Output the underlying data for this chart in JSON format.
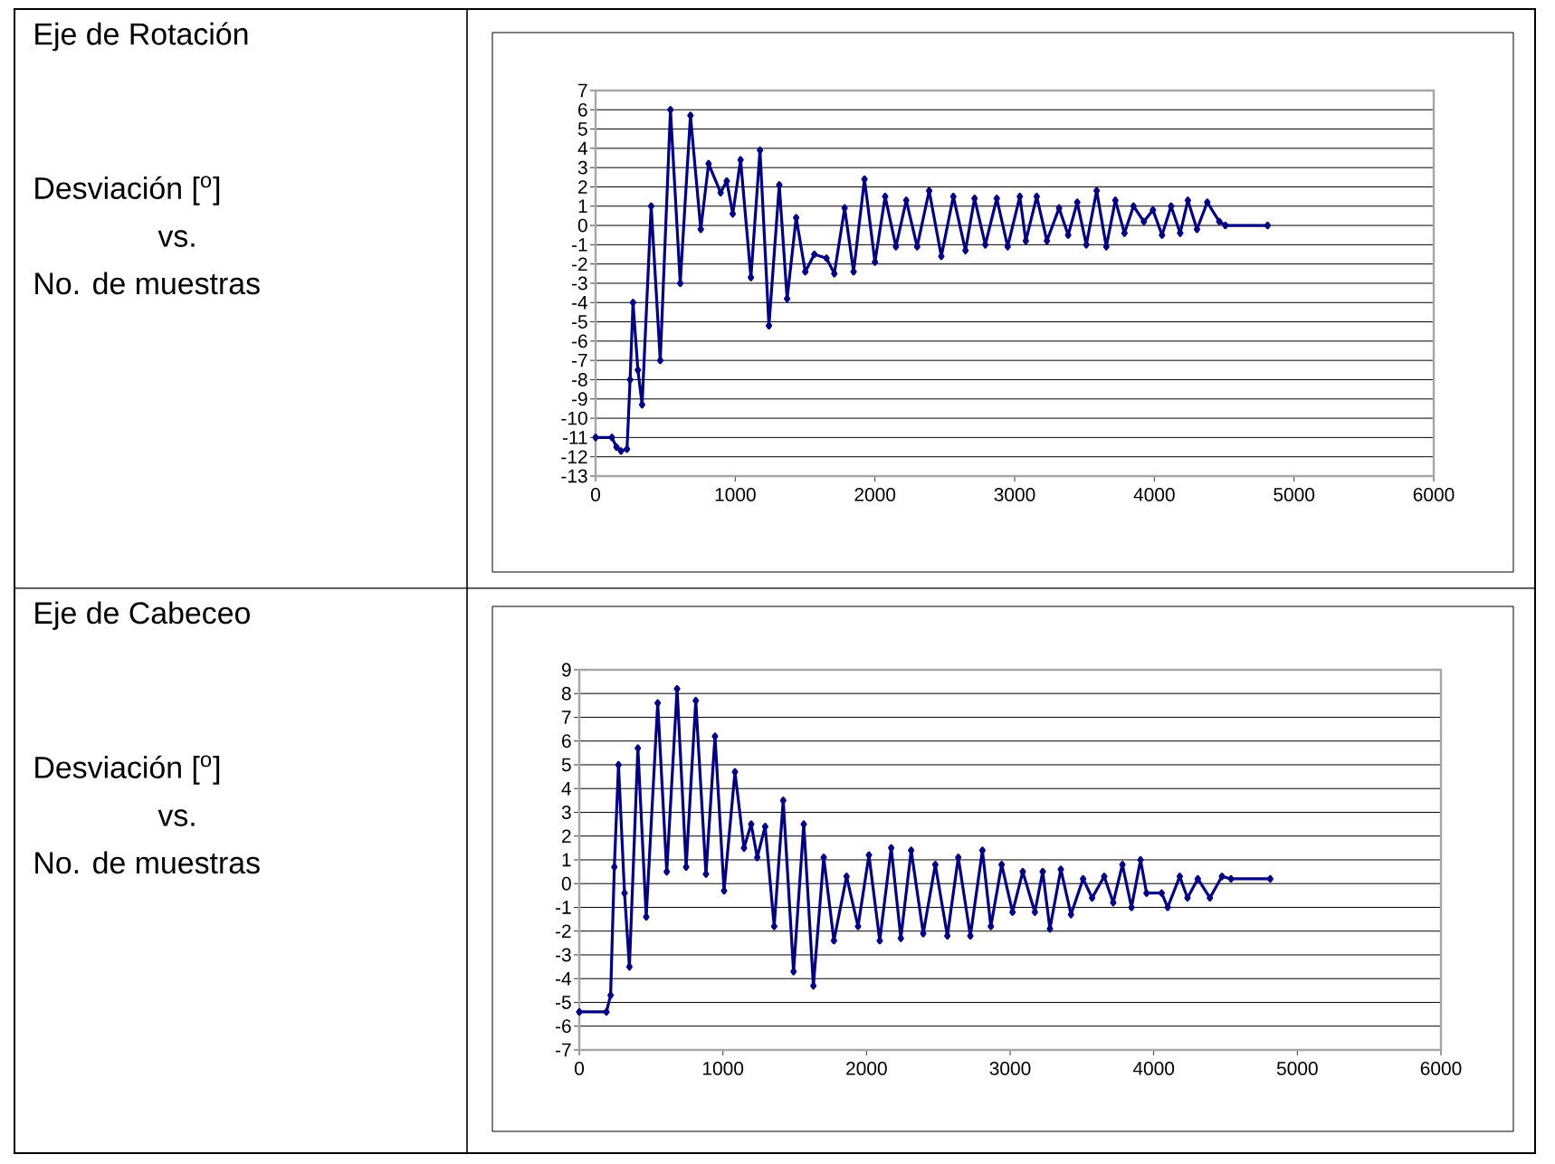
{
  "chart_data": [
    {
      "type": "line",
      "annotations": [
        "Eje de Rotación",
        "Desviación [$^{o}$]",
        "vs.",
        "No. de muestras"
      ],
      "xlim": [
        0,
        6000
      ],
      "xticks": [
        0,
        1000,
        2000,
        3000,
        4000,
        5000,
        6000
      ],
      "ylim": [
        -13,
        7
      ],
      "yticks": [
        -13,
        -12,
        -11,
        -10,
        -9,
        -8,
        -7,
        -6,
        -5,
        -4,
        -3,
        -2,
        -1,
        0,
        1,
        2,
        3,
        4,
        5,
        6,
        7
      ],
      "grid": "y",
      "marker": "diamond",
      "line_style": "solid",
      "series": [
        {
          "color": "#000080",
          "x": [
            0,
            117,
            150,
            182,
            225,
            247,
            268,
            303,
            333,
            398,
            463,
            536,
            606,
            679,
            753,
            809,
            895,
            939,
            982,
            1038,
            1112,
            1177,
            1241,
            1315,
            1371,
            1436,
            1501,
            1566,
            1653,
            1709,
            1783,
            1847,
            1925,
            2000,
            2073,
            2150,
            2224,
            2302,
            2388,
            2475,
            2561,
            2648,
            2713,
            2790,
            2872,
            2950,
            3037,
            3080,
            3158,
            3231,
            3318,
            3383,
            3448,
            3513,
            3587,
            3656,
            3721,
            3786,
            3851,
            3925,
            3990,
            4055,
            4120,
            4185,
            4240,
            4305,
            4379,
            4465,
            4508,
            4811
          ],
          "values": [
            -11,
            -11,
            -11.5,
            -11.7,
            -11.6,
            -8,
            -4,
            -7.5,
            -9.3,
            1,
            -7,
            6,
            -3,
            5.7,
            -0.2,
            3.2,
            1.7,
            2.3,
            0.6,
            3.4,
            -2.7,
            3.9,
            -5.2,
            2.1,
            -3.8,
            0.4,
            -2.4,
            -1.5,
            -1.7,
            -2.5,
            0.9,
            -2.4,
            2.4,
            -1.9,
            1.5,
            -1.1,
            1.3,
            -1.1,
            1.8,
            -1.6,
            1.5,
            -1.3,
            1.4,
            -1,
            1.4,
            -1.1,
            1.5,
            -0.8,
            1.5,
            -0.8,
            0.9,
            -0.5,
            1.2,
            -1,
            1.8,
            -1.1,
            1.3,
            -0.4,
            1,
            0.2,
            0.8,
            -0.5,
            1,
            -0.4,
            1.3,
            -0.2,
            1.2,
            0.2,
            0,
            0
          ]
        }
      ]
    },
    {
      "type": "line",
      "annotations": [
        "Eje de Cabeceo",
        "Desviación [$^{o}$]",
        "vs.",
        "No. de muestras"
      ],
      "xlim": [
        0,
        6000
      ],
      "xticks": [
        0,
        1000,
        2000,
        3000,
        4000,
        5000,
        6000
      ],
      "ylim": [
        -7,
        9
      ],
      "yticks": [
        -7,
        -6,
        -5,
        -4,
        -3,
        -2,
        -1,
        0,
        1,
        2,
        3,
        4,
        5,
        6,
        7,
        8,
        9
      ],
      "grid": "y",
      "marker": "diamond",
      "line_style": "solid",
      "series": [
        {
          "color": "#000080",
          "x": [
            0,
            189,
            218,
            244,
            273,
            315,
            349,
            408,
            466,
            546,
            609,
            681,
            744,
            811,
            882,
            945,
            1008,
            1084,
            1147,
            1197,
            1239,
            1294,
            1357,
            1420,
            1492,
            1563,
            1630,
            1702,
            1773,
            1861,
            1941,
            2017,
            2092,
            2172,
            2239,
            2311,
            2395,
            2479,
            2563,
            2639,
            2723,
            2807,
            2866,
            2941,
            3017,
            3088,
            3172,
            3227,
            3277,
            3353,
            3424,
            3508,
            3571,
            3655,
            3718,
            3782,
            3845,
            3908,
            3950,
            4055,
            4097,
            4181,
            4235,
            4307,
            4391,
            4475,
            4538,
            4811
          ],
          "values": [
            -5.4,
            -5.4,
            -4.7,
            0.7,
            5,
            -0.4,
            -3.5,
            5.7,
            -1.4,
            7.6,
            0.5,
            8.2,
            0.7,
            7.7,
            0.4,
            6.2,
            -0.3,
            4.7,
            1.5,
            2.5,
            1.1,
            2.4,
            -1.8,
            3.5,
            -3.7,
            2.5,
            -4.3,
            1.1,
            -2.4,
            0.3,
            -1.8,
            1.2,
            -2.4,
            1.5,
            -2.3,
            1.4,
            -2.1,
            0.8,
            -2.2,
            1.1,
            -2.2,
            1.4,
            -1.8,
            0.8,
            -1.2,
            0.5,
            -1.2,
            0.5,
            -1.9,
            0.6,
            -1.3,
            0.2,
            -0.6,
            0.3,
            -0.8,
            0.8,
            -1,
            1,
            -0.4,
            -0.4,
            -1,
            0.3,
            -0.6,
            0.2,
            -0.6,
            0.3,
            0.2,
            0.2
          ]
        }
      ]
    }
  ]
}
